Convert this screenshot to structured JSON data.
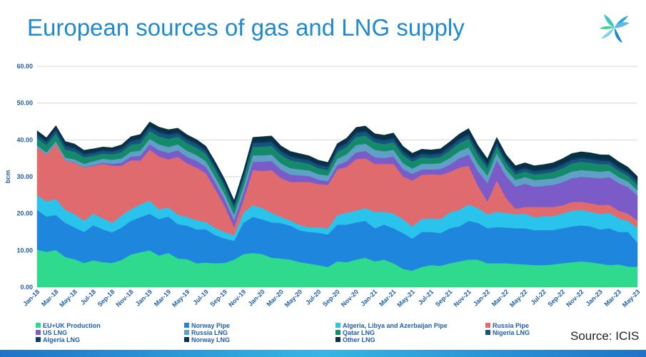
{
  "title": "European sources of gas and LNG supply",
  "source": "Source: ICIS",
  "logo_icon": "icis-logo-icon",
  "chart_data": {
    "type": "area",
    "stacked": true,
    "title": "European sources of gas and LNG supply",
    "ylabel": "bcm",
    "xlabel": "",
    "ylim": [
      0,
      60
    ],
    "yticks": [
      "0.00",
      "10.00",
      "20.00",
      "30.00",
      "40.00",
      "50.00",
      "60.00"
    ],
    "xtick_labels": [
      "Jan-18",
      "Mar-18",
      "May-18",
      "Jul-18",
      "Sep-18",
      "Nov-18",
      "Jan-19",
      "Mar-19",
      "May-19",
      "Jul-19",
      "Sep-19",
      "Nov-19",
      "Jan-20",
      "Mar-20",
      "May-20",
      "Jul-20",
      "Sep-20",
      "Nov-20",
      "Jan-21",
      "Mar-21",
      "May-21",
      "Jul-21",
      "Sep-21",
      "Nov-21",
      "Jan-22",
      "Mar-22",
      "May-22",
      "Jul-22",
      "Sep-22",
      "Nov-22",
      "Jan-23",
      "Mar-23",
      "May-23"
    ],
    "gridlines": true,
    "legend_position": "bottom",
    "series": [
      {
        "name": "EU+UK Production",
        "color": "#2fd98e",
        "values": [
          10.2,
          9.6,
          10.1,
          8.2,
          7.6,
          6.6,
          7.3,
          6.8,
          6.6,
          7.4,
          8.9,
          9.5,
          10.0,
          8.6,
          9.3,
          7.8,
          7.6,
          6.5,
          6.7,
          6.5,
          6.6,
          7.5,
          9.0,
          9.3,
          9.0,
          8.0,
          7.8,
          7.5,
          6.8,
          6.4,
          6.0,
          5.5,
          7.0,
          6.8,
          7.5,
          8.0,
          7.0,
          7.5,
          6.5,
          5.0,
          4.5,
          5.5,
          6.0,
          5.8,
          6.5,
          7.0,
          7.5,
          7.5,
          6.5,
          6.5,
          6.5,
          6.3,
          6.2,
          6.0,
          6.0,
          6.2,
          6.5,
          6.8,
          7.0,
          6.8,
          6.4,
          6.0,
          6.2,
          5.6,
          5.6
        ]
      },
      {
        "name": "Norway Pipe",
        "color": "#1e86dd",
        "values": [
          10.8,
          9.6,
          9.5,
          9.3,
          8.6,
          8.4,
          9.5,
          8.9,
          8.3,
          8.8,
          9.1,
          9.5,
          9.9,
          9.9,
          9.9,
          9.3,
          9.1,
          9.2,
          9.0,
          7.6,
          6.6,
          5.1,
          8.5,
          9.8,
          9.4,
          9.6,
          9.6,
          9.2,
          8.6,
          8.6,
          8.8,
          8.8,
          10.0,
          10.2,
          10.1,
          10.0,
          9.0,
          9.5,
          9.5,
          9.7,
          8.7,
          9.5,
          9.0,
          8.9,
          9.5,
          9.5,
          10.5,
          10.0,
          9.5,
          9.8,
          9.7,
          9.7,
          9.8,
          9.5,
          9.5,
          9.3,
          9.5,
          9.7,
          9.8,
          9.7,
          9.3,
          10.0,
          8.8,
          9.4,
          6.5
        ]
      },
      {
        "name": "Algeria, Libya and Azerbaijan Pipe",
        "color": "#29c3ec",
        "values": [
          4.0,
          4.1,
          4.4,
          3.5,
          3.7,
          3.0,
          3.2,
          3.0,
          2.6,
          3.3,
          3.2,
          3.5,
          3.6,
          2.6,
          2.5,
          2.6,
          2.4,
          2.5,
          2.0,
          2.0,
          1.8,
          1.5,
          2.8,
          3.2,
          3.1,
          2.6,
          1.7,
          1.4,
          1.5,
          1.3,
          1.5,
          1.7,
          2.6,
          3.2,
          3.2,
          3.5,
          4.5,
          3.5,
          4.0,
          3.8,
          3.3,
          3.5,
          3.7,
          3.8,
          4.3,
          4.5,
          4.5,
          4.0,
          3.8,
          4.2,
          4.0,
          3.8,
          4.0,
          3.5,
          3.8,
          3.8,
          4.0,
          4.3,
          4.2,
          4.0,
          4.2,
          4.2,
          3.7,
          3.0,
          4.0
        ]
      },
      {
        "name": "Russia Pipe",
        "color": "#e06b6e",
        "values": [
          13.0,
          12.7,
          15.0,
          13.5,
          13.9,
          14.5,
          13.0,
          14.8,
          15.5,
          13.5,
          13.3,
          11.9,
          13.9,
          14.4,
          13.0,
          15.7,
          14.5,
          14.3,
          13.2,
          10.5,
          7.0,
          2.2,
          3.4,
          9.5,
          10.1,
          11.6,
          10.5,
          10.5,
          11.7,
          12.3,
          11.7,
          11.8,
          12.4,
          12.5,
          14.0,
          13.5,
          13.0,
          13.0,
          13.5,
          11.6,
          12.5,
          12.0,
          12.0,
          12.0,
          11.0,
          11.5,
          10.5,
          6.0,
          3.5,
          8.5,
          4.0,
          1.5,
          1.8,
          2.8,
          2.5,
          2.5,
          2.2,
          2.3,
          2.2,
          2.3,
          2.4,
          2.2,
          2.1,
          2.0,
          2.0
        ]
      },
      {
        "name": "US LNG",
        "color": "#7a5bc7",
        "values": [
          0,
          0,
          0,
          0,
          0.1,
          0.1,
          0.2,
          0.3,
          0.5,
          0.8,
          1.0,
          1.3,
          1.4,
          1.7,
          1.8,
          1.8,
          1.8,
          1.8,
          1.8,
          1.8,
          1.8,
          1.9,
          2.0,
          2.3,
          2.5,
          2.5,
          2.3,
          2.0,
          1.8,
          1.6,
          1.2,
          1.0,
          1.2,
          1.5,
          1.8,
          2.0,
          1.8,
          1.6,
          2.0,
          2.0,
          1.8,
          1.5,
          1.3,
          1.6,
          2.0,
          2.5,
          3.0,
          4.0,
          5.0,
          5.5,
          6.0,
          6.0,
          6.3,
          5.5,
          5.7,
          6.0,
          6.3,
          6.5,
          6.8,
          7.0,
          7.3,
          7.5,
          7.5,
          7.2,
          6.8
        ]
      },
      {
        "name": "Russia LNG",
        "color": "#5fa1c6",
        "values": [
          0.5,
          0.6,
          0.6,
          0.7,
          0.8,
          0.9,
          1.0,
          1.1,
          1.1,
          1.2,
          1.3,
          1.4,
          1.5,
          1.6,
          1.6,
          1.6,
          1.6,
          1.6,
          1.5,
          1.5,
          1.5,
          1.5,
          1.6,
          1.7,
          1.7,
          1.7,
          1.7,
          1.7,
          1.6,
          1.5,
          1.5,
          1.5,
          1.7,
          1.9,
          2.0,
          2.0,
          2.0,
          1.8,
          1.8,
          1.6,
          1.4,
          1.5,
          1.5,
          1.6,
          1.8,
          1.9,
          2.0,
          2.0,
          2.0,
          1.9,
          1.8,
          1.8,
          1.8,
          1.8,
          1.8,
          1.7,
          1.8,
          1.8,
          1.8,
          1.8,
          1.8,
          1.7,
          1.6,
          1.5,
          1.4
        ]
      },
      {
        "name": "Qatar LNG",
        "color": "#148a6b",
        "values": [
          2.0,
          2.0,
          2.1,
          2.2,
          2.1,
          1.8,
          1.5,
          1.4,
          1.5,
          1.7,
          1.9,
          2.0,
          2.1,
          2.2,
          2.2,
          2.1,
          2.1,
          2.0,
          2.0,
          2.0,
          1.9,
          1.8,
          2.0,
          2.3,
          2.4,
          2.4,
          2.3,
          2.2,
          2.0,
          1.8,
          1.6,
          1.5,
          1.8,
          2.0,
          2.2,
          2.2,
          2.0,
          2.0,
          2.1,
          2.2,
          1.9,
          1.8,
          1.6,
          1.7,
          2.0,
          2.2,
          2.4,
          2.3,
          2.0,
          1.8,
          1.6,
          1.5,
          1.5,
          1.5,
          1.6,
          1.8,
          2.0,
          2.2,
          2.3,
          2.2,
          2.0,
          1.8,
          1.7,
          1.5,
          1.4
        ]
      },
      {
        "name": "Nigeria LNG",
        "color": "#15547e",
        "values": [
          0.8,
          0.8,
          0.9,
          0.9,
          0.8,
          0.7,
          0.7,
          0.7,
          0.7,
          0.8,
          0.9,
          1.0,
          1.0,
          1.0,
          1.0,
          0.9,
          0.9,
          0.9,
          0.8,
          0.8,
          0.8,
          0.8,
          0.9,
          1.0,
          1.0,
          1.0,
          0.9,
          0.9,
          0.8,
          0.8,
          0.8,
          0.8,
          0.9,
          0.9,
          1.0,
          1.0,
          0.9,
          0.9,
          0.9,
          0.8,
          0.8,
          0.8,
          0.8,
          0.8,
          0.9,
          0.9,
          1.0,
          1.0,
          0.9,
          0.9,
          0.8,
          0.8,
          0.8,
          0.8,
          0.8,
          0.8,
          0.9,
          0.9,
          0.9,
          0.9,
          0.9,
          0.8,
          0.8,
          0.8,
          0.8
        ]
      },
      {
        "name": "Algeria LNG",
        "color": "#0f3f66",
        "values": [
          0.3,
          0.3,
          0.3,
          0.3,
          0.3,
          0.3,
          0.3,
          0.3,
          0.3,
          0.3,
          0.3,
          0.3,
          0.3,
          0.3,
          0.3,
          0.3,
          0.3,
          0.3,
          0.3,
          0.3,
          0.3,
          0.3,
          0.3,
          0.3,
          0.3,
          0.3,
          0.3,
          0.3,
          0.3,
          0.3,
          0.3,
          0.3,
          0.3,
          0.3,
          0.3,
          0.3,
          0.3,
          0.3,
          0.3,
          0.3,
          0.3,
          0.3,
          0.3,
          0.3,
          0.3,
          0.3,
          0.3,
          0.3,
          0.3,
          0.3,
          0.3,
          0.3,
          0.3,
          0.3,
          0.3,
          0.3,
          0.3,
          0.3,
          0.3,
          0.3,
          0.3,
          0.3,
          0.3,
          0.3,
          0.3
        ]
      },
      {
        "name": "Norway LNG",
        "color": "#0b3250",
        "values": [
          0.3,
          0.3,
          0.3,
          0.3,
          0.3,
          0.3,
          0.3,
          0.3,
          0.3,
          0.3,
          0.3,
          0.3,
          0.3,
          0.3,
          0.3,
          0.3,
          0.3,
          0.3,
          0.3,
          0.3,
          0.3,
          0.3,
          0.3,
          0.3,
          0.3,
          0.3,
          0.3,
          0.3,
          0.3,
          0.3,
          0.3,
          0.3,
          0.3,
          0.3,
          0.3,
          0.3,
          0.3,
          0.3,
          0.3,
          0.3,
          0.3,
          0.3,
          0.3,
          0.3,
          0.3,
          0.3,
          0.3,
          0.3,
          0.3,
          0.3,
          0.3,
          0.3,
          0.3,
          0.3,
          0.3,
          0.3,
          0.3,
          0.3,
          0.3,
          0.3,
          0.3,
          0.3,
          0.3,
          0.3,
          0.3
        ]
      },
      {
        "name": "Other LNG",
        "color": "#073042",
        "values": [
          0.6,
          0.6,
          0.7,
          0.7,
          0.7,
          0.6,
          0.6,
          0.5,
          0.5,
          0.6,
          0.7,
          0.8,
          0.9,
          0.9,
          0.9,
          0.8,
          0.8,
          0.7,
          0.7,
          0.7,
          0.7,
          0.7,
          0.8,
          1.0,
          1.1,
          1.1,
          1.0,
          0.9,
          0.9,
          0.8,
          0.8,
          0.7,
          0.8,
          0.9,
          1.0,
          1.0,
          0.9,
          0.9,
          1.0,
          1.0,
          0.9,
          0.8,
          0.8,
          0.8,
          0.9,
          1.0,
          1.1,
          1.1,
          1.1,
          1.0,
          1.0,
          1.0,
          1.0,
          1.0,
          1.0,
          1.1,
          1.1,
          1.2,
          1.2,
          1.2,
          1.1,
          1.1,
          1.1,
          1.0,
          1.0
        ]
      }
    ]
  }
}
